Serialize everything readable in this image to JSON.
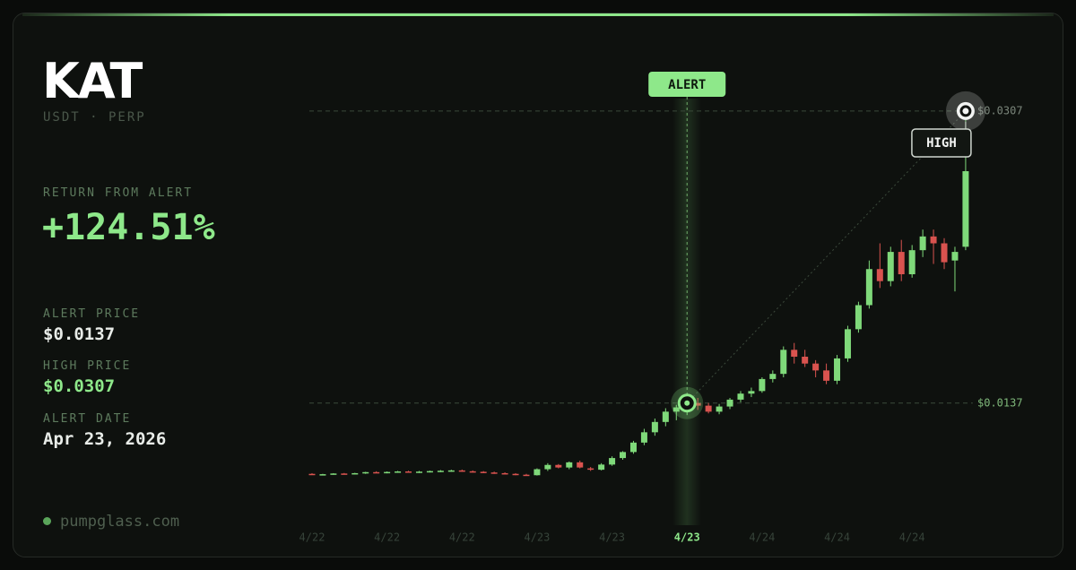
{
  "card": {
    "symbol": "KAT",
    "pair": "USDT · PERP",
    "return_label": "RETURN FROM ALERT",
    "return_value": "+124.51%",
    "stats": [
      {
        "label": "ALERT PRICE",
        "value": "$0.0137"
      },
      {
        "label": "HIGH PRICE",
        "value": "$0.0307"
      },
      {
        "label": "ALERT DATE",
        "value": "Apr 23, 2026"
      }
    ],
    "site": "pumpglass.com"
  },
  "chart_data": {
    "type": "candlestick",
    "categories": [
      "4/22",
      null,
      null,
      null,
      null,
      null,
      null,
      "4/22",
      null,
      null,
      null,
      null,
      null,
      null,
      "4/22",
      null,
      null,
      null,
      null,
      null,
      null,
      "4/23",
      null,
      null,
      null,
      null,
      null,
      null,
      "4/23",
      null,
      null,
      null,
      null,
      null,
      null,
      "4/23",
      null,
      null,
      null,
      null,
      null,
      null,
      "4/24",
      null,
      null,
      null,
      null,
      null,
      null,
      "4/24",
      null,
      null,
      null,
      null,
      null,
      null,
      "4/24",
      null,
      null,
      null,
      null,
      null
    ],
    "open": [
      0.00958,
      0.00953,
      0.00956,
      0.0096,
      0.00957,
      0.00962,
      0.00968,
      0.00965,
      0.00969,
      0.00972,
      0.00968,
      0.00971,
      0.00974,
      0.00976,
      0.00978,
      0.00973,
      0.0097,
      0.00966,
      0.00962,
      0.00958,
      0.00953,
      0.0095,
      0.00985,
      0.0101,
      0.00995,
      0.01025,
      0.0099,
      0.00982,
      0.01012,
      0.0105,
      0.01085,
      0.0114,
      0.012,
      0.0126,
      0.0132,
      0.01345,
      0.0137,
      0.01355,
      0.0132,
      0.0135,
      0.0139,
      0.01425,
      0.0144,
      0.0151,
      0.0154,
      0.0168,
      0.0164,
      0.016,
      0.0156,
      0.015,
      0.0163,
      0.018,
      0.0194,
      0.0215,
      0.0208,
      0.0225,
      0.0212,
      0.0226,
      0.0234,
      0.023,
      0.022,
      0.0228
    ],
    "high": [
      0.00962,
      0.00958,
      0.00962,
      0.00963,
      0.00964,
      0.0097,
      0.00973,
      0.00972,
      0.00975,
      0.00976,
      0.00975,
      0.00977,
      0.0098,
      0.00982,
      0.00983,
      0.00978,
      0.00974,
      0.00971,
      0.00967,
      0.00962,
      0.00958,
      0.0099,
      0.0102,
      0.01015,
      0.0103,
      0.01035,
      0.00998,
      0.0102,
      0.0106,
      0.0109,
      0.0115,
      0.0122,
      0.0128,
      0.0134,
      0.0136,
      0.01385,
      0.014,
      0.0137,
      0.01365,
      0.014,
      0.0144,
      0.0146,
      0.0152,
      0.0156,
      0.017,
      0.0172,
      0.0168,
      0.0162,
      0.016,
      0.0165,
      0.0182,
      0.0196,
      0.022,
      0.023,
      0.0228,
      0.0232,
      0.0229,
      0.0238,
      0.0238,
      0.0233,
      0.0228,
      0.0307
    ],
    "low": [
      0.00952,
      0.0095,
      0.00953,
      0.00954,
      0.00955,
      0.00958,
      0.00962,
      0.00961,
      0.00964,
      0.00966,
      0.00963,
      0.00966,
      0.00968,
      0.0097,
      0.0097,
      0.00966,
      0.00962,
      0.00958,
      0.00955,
      0.0095,
      0.00946,
      0.00948,
      0.00975,
      0.0099,
      0.00985,
      0.0099,
      0.00975,
      0.00978,
      0.01005,
      0.0104,
      0.01075,
      0.01125,
      0.0118,
      0.01235,
      0.0127,
      0.013,
      0.0133,
      0.0131,
      0.01305,
      0.01335,
      0.01375,
      0.01405,
      0.0143,
      0.0149,
      0.0152,
      0.016,
      0.0158,
      0.0152,
      0.0148,
      0.0148,
      0.0161,
      0.0178,
      0.0192,
      0.0204,
      0.0205,
      0.0208,
      0.021,
      0.0222,
      0.0218,
      0.0215,
      0.0202,
      0.0226
    ],
    "close": [
      0.00955,
      0.00956,
      0.0096,
      0.00957,
      0.00962,
      0.00968,
      0.00965,
      0.00969,
      0.00972,
      0.00968,
      0.00971,
      0.00974,
      0.00976,
      0.00978,
      0.00973,
      0.0097,
      0.00966,
      0.00962,
      0.00958,
      0.00953,
      0.0095,
      0.00985,
      0.0101,
      0.00995,
      0.01025,
      0.00995,
      0.00982,
      0.01012,
      0.0105,
      0.01085,
      0.0114,
      0.012,
      0.0126,
      0.0132,
      0.01345,
      0.0137,
      0.01355,
      0.0132,
      0.0135,
      0.0139,
      0.01425,
      0.0144,
      0.0151,
      0.0154,
      0.0168,
      0.0164,
      0.016,
      0.0156,
      0.015,
      0.0163,
      0.018,
      0.0194,
      0.0215,
      0.0208,
      0.0225,
      0.0212,
      0.0226,
      0.0234,
      0.023,
      0.0219,
      0.0225,
      0.0272
    ],
    "up_color": "#7fd97a",
    "down_color": "#d9534f",
    "ylim": [
      0.008,
      0.032
    ],
    "reference_lines": [
      {
        "value": 0.0137,
        "label": "$0.0137"
      },
      {
        "value": 0.0307,
        "label": "$0.0307"
      }
    ],
    "annotations": [
      "ALERT",
      "HIGH"
    ]
  }
}
